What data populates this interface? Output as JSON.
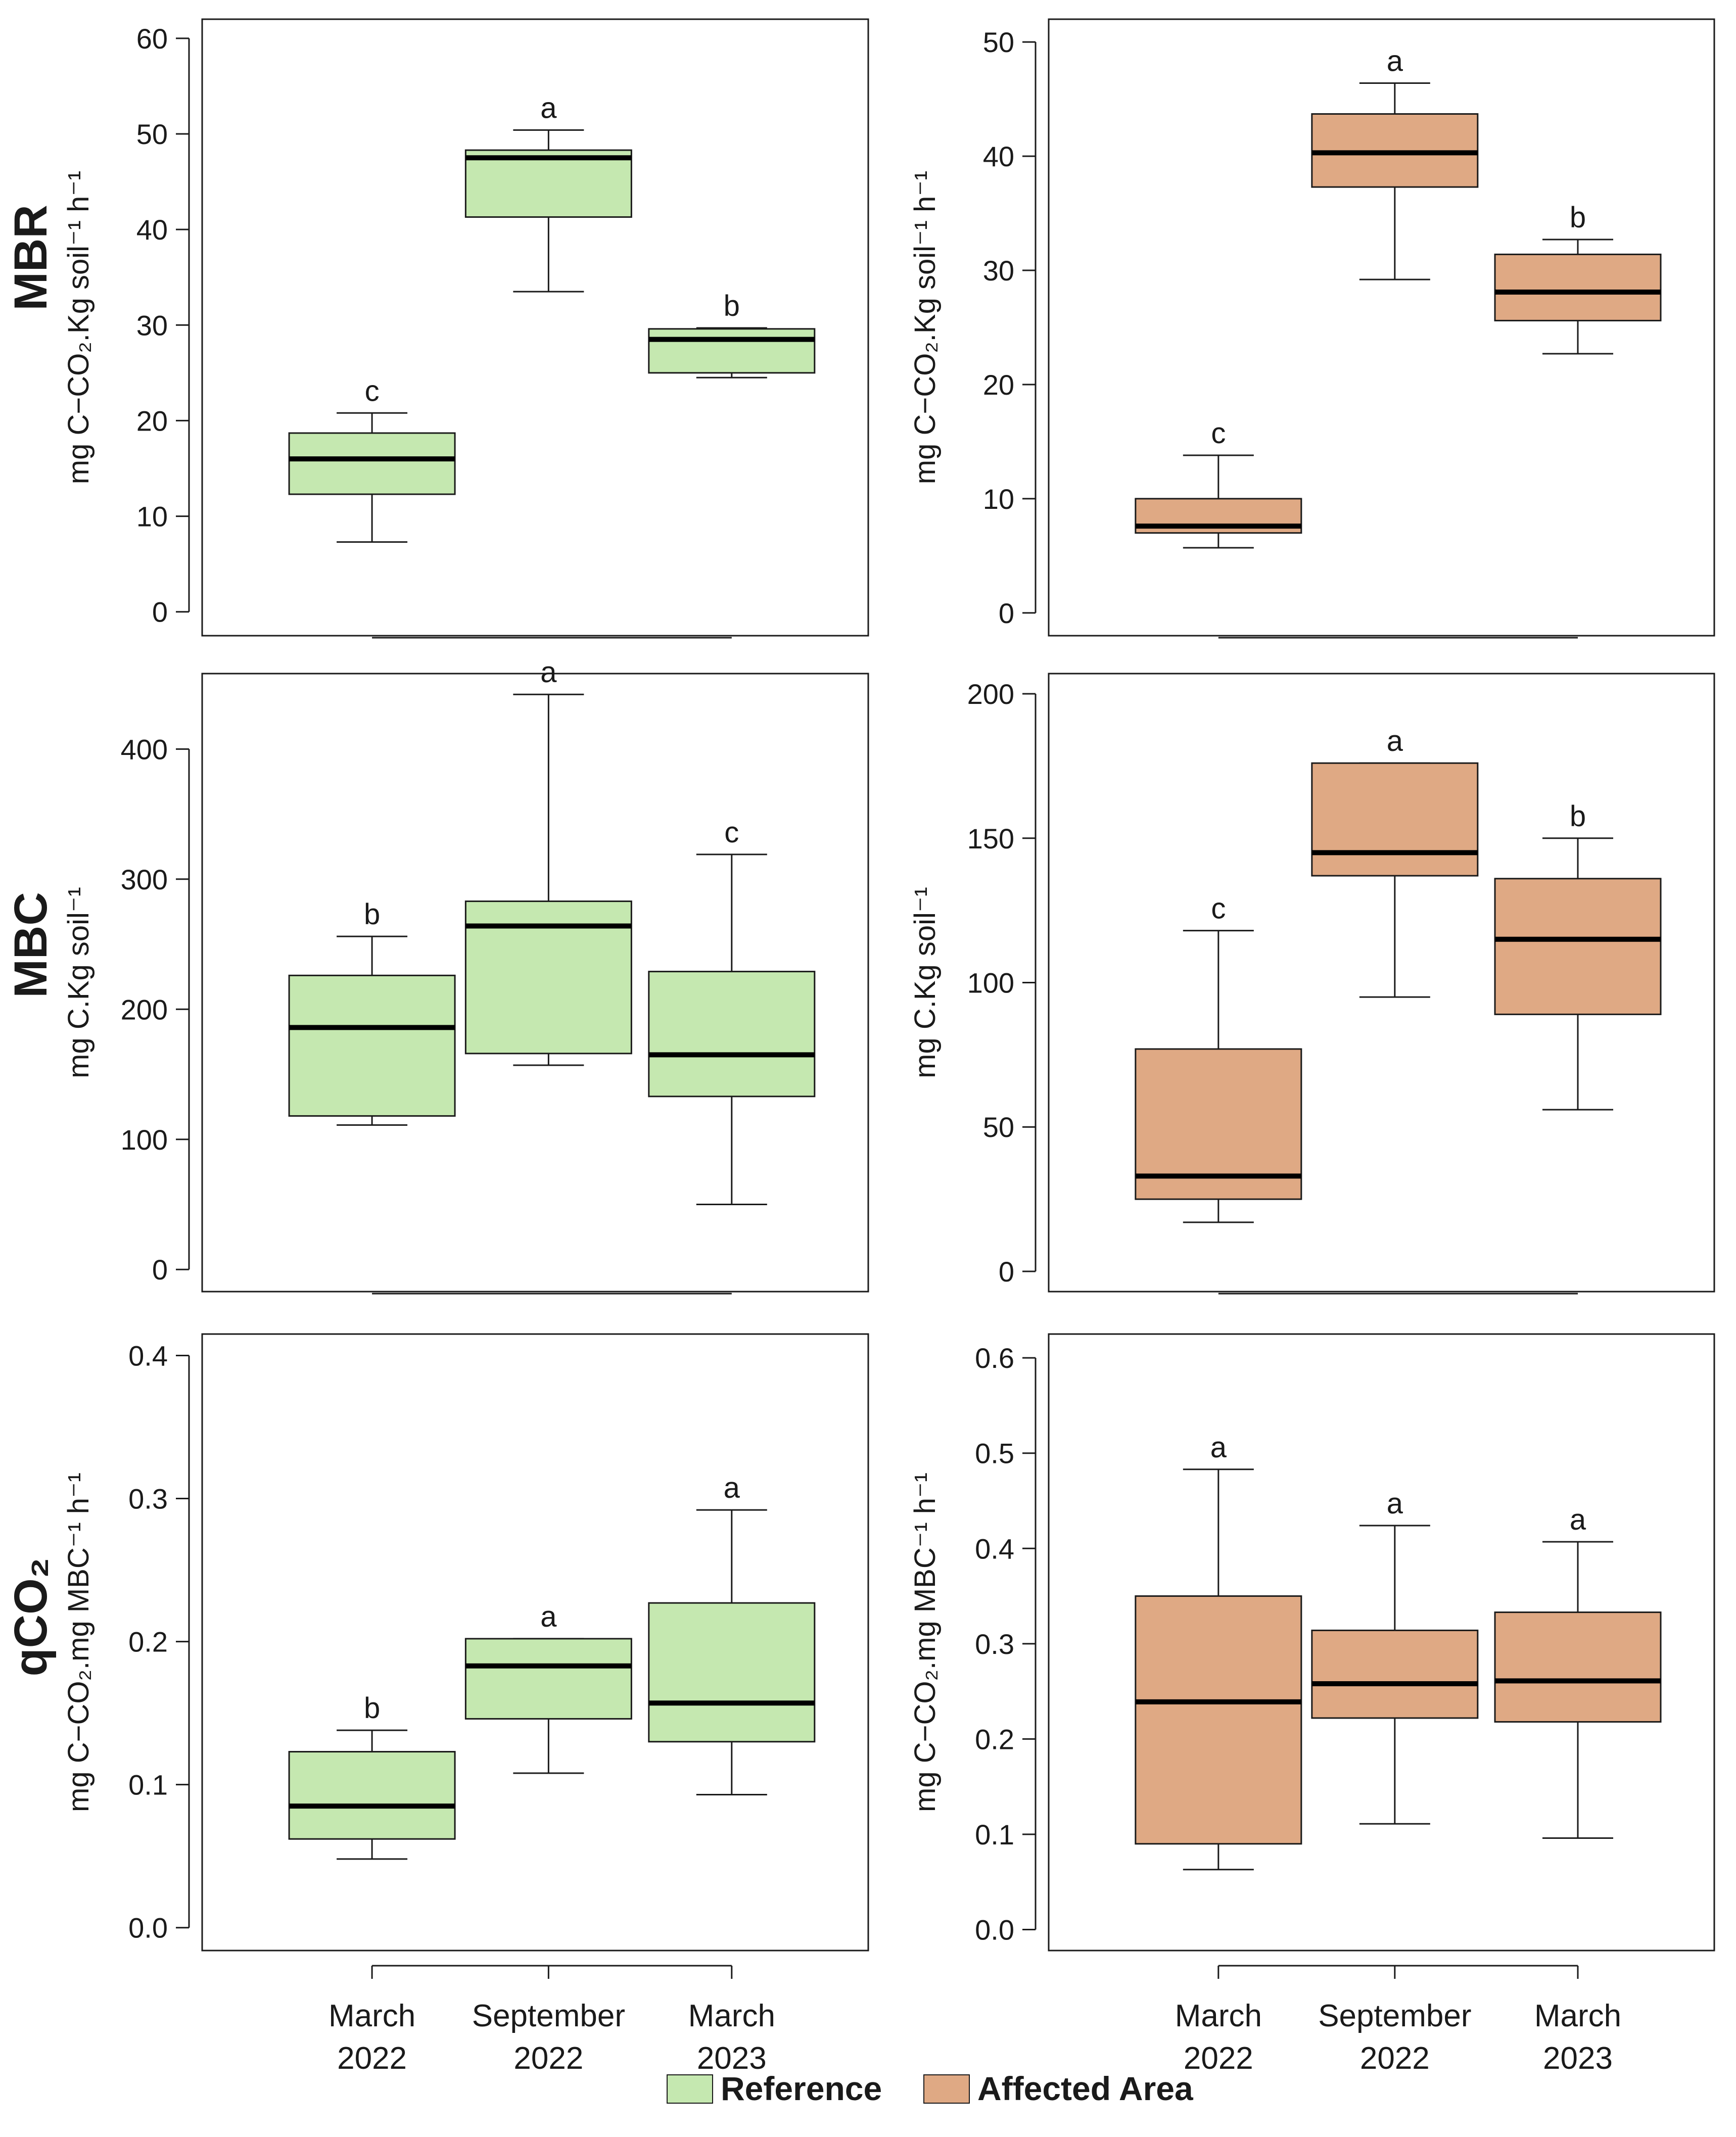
{
  "colors": {
    "reference_fill": "#c5e8b0",
    "affected_fill": "#dfa984",
    "stroke": "#1a1a1a",
    "median": "#000000"
  },
  "legend": [
    {
      "label": "Reference",
      "color": "#c5e8b0"
    },
    {
      "label": "Affected Area",
      "color": "#dfa984"
    }
  ],
  "rows": [
    {
      "title": "MBR"
    },
    {
      "title": "MBC"
    },
    {
      "title": "qCO₂"
    }
  ],
  "chart_data": [
    {
      "type": "box",
      "row": 0,
      "col": 0,
      "group": "Reference",
      "ylabel": "mg C−CO₂.Kg soil⁻¹ h⁻¹",
      "ylim": [
        -2.5,
        62
      ],
      "yticks": [
        0,
        10,
        20,
        30,
        40,
        50,
        60
      ],
      "tick_labels": [
        "0",
        "10",
        "20",
        "30",
        "40",
        "50",
        "60"
      ],
      "categories": [
        "March 2022",
        "September 2022",
        "March 2023"
      ],
      "boxes": [
        {
          "whisker_low": 7.3,
          "q1": 12.3,
          "median": 16.0,
          "q3": 18.7,
          "whisker_high": 20.8,
          "letter": "c"
        },
        {
          "whisker_low": 33.5,
          "q1": 41.3,
          "median": 47.5,
          "q3": 48.3,
          "whisker_high": 50.4,
          "letter": "a"
        },
        {
          "whisker_low": 24.5,
          "q1": 25.0,
          "median": 28.5,
          "q3": 29.6,
          "whisker_high": 29.7,
          "letter": "b"
        }
      ]
    },
    {
      "type": "box",
      "row": 0,
      "col": 1,
      "group": "Affected Area",
      "ylabel": "mg C−CO₂.Kg soil⁻¹ h⁻¹",
      "ylim": [
        -2.0,
        52
      ],
      "yticks": [
        0,
        10,
        20,
        30,
        40,
        50
      ],
      "tick_labels": [
        "0",
        "10",
        "20",
        "30",
        "40",
        "50"
      ],
      "categories": [
        "March 2022",
        "September 2022",
        "March 2023"
      ],
      "boxes": [
        {
          "whisker_low": 5.7,
          "q1": 7.0,
          "median": 7.6,
          "q3": 10.0,
          "whisker_high": 13.8,
          "letter": "c"
        },
        {
          "whisker_low": 29.2,
          "q1": 37.3,
          "median": 40.3,
          "q3": 43.7,
          "whisker_high": 46.4,
          "letter": "a"
        },
        {
          "whisker_low": 22.7,
          "q1": 25.6,
          "median": 28.1,
          "q3": 31.4,
          "whisker_high": 32.7,
          "letter": "b"
        }
      ]
    },
    {
      "type": "box",
      "row": 1,
      "col": 0,
      "group": "Reference",
      "ylabel": "mg C.Kg soil⁻¹",
      "ylim": [
        -17,
        458
      ],
      "yticks": [
        0,
        100,
        200,
        300,
        400
      ],
      "tick_labels": [
        "0",
        "100",
        "200",
        "300",
        "400"
      ],
      "categories": [
        "March 2022",
        "September 2022",
        "March 2023"
      ],
      "boxes": [
        {
          "whisker_low": 111,
          "q1": 118,
          "median": 186,
          "q3": 226,
          "whisker_high": 256,
          "letter": "b"
        },
        {
          "whisker_low": 157,
          "q1": 166,
          "median": 264,
          "q3": 283,
          "whisker_high": 442,
          "letter": "a"
        },
        {
          "whisker_low": 50,
          "q1": 133,
          "median": 165,
          "q3": 229,
          "whisker_high": 319,
          "letter": "c"
        }
      ]
    },
    {
      "type": "box",
      "row": 1,
      "col": 1,
      "group": "Affected Area",
      "ylabel": "mg C.Kg soil⁻¹",
      "ylim": [
        -7,
        207
      ],
      "yticks": [
        0,
        50,
        100,
        150,
        200
      ],
      "tick_labels": [
        "0",
        "50",
        "100",
        "150",
        "200"
      ],
      "categories": [
        "March 2022",
        "September 2022",
        "March 2023"
      ],
      "boxes": [
        {
          "whisker_low": 17,
          "q1": 25,
          "median": 33,
          "q3": 77,
          "whisker_high": 118,
          "letter": "c"
        },
        {
          "whisker_low": 95,
          "q1": 137,
          "median": 145,
          "q3": 176,
          "whisker_high": 176,
          "letter": "a"
        },
        {
          "whisker_low": 56,
          "q1": 89,
          "median": 115,
          "q3": 136,
          "whisker_high": 150,
          "letter": "b"
        }
      ]
    },
    {
      "type": "box",
      "row": 2,
      "col": 0,
      "group": "Reference",
      "ylabel": "mg C−CO₂.mg MBC⁻¹ h⁻¹",
      "ylim": [
        -0.016,
        0.415
      ],
      "yticks": [
        0.0,
        0.1,
        0.2,
        0.3,
        0.4
      ],
      "tick_labels": [
        "0.0",
        "0.1",
        "0.2",
        "0.3",
        "0.4"
      ],
      "categories": [
        "March 2022",
        "September 2022",
        "March 2023"
      ],
      "boxes": [
        {
          "whisker_low": 0.048,
          "q1": 0.062,
          "median": 0.085,
          "q3": 0.123,
          "whisker_high": 0.138,
          "letter": "b"
        },
        {
          "whisker_low": 0.108,
          "q1": 0.146,
          "median": 0.183,
          "q3": 0.202,
          "whisker_high": 0.202,
          "letter": "a"
        },
        {
          "whisker_low": 0.093,
          "q1": 0.13,
          "median": 0.157,
          "q3": 0.227,
          "whisker_high": 0.292,
          "letter": "a"
        }
      ]
    },
    {
      "type": "box",
      "row": 2,
      "col": 1,
      "group": "Affected Area",
      "ylabel": "mg C−CO₂.mg MBC⁻¹ h⁻¹",
      "ylim": [
        -0.022,
        0.625
      ],
      "yticks": [
        0.0,
        0.1,
        0.2,
        0.3,
        0.4,
        0.5,
        0.6
      ],
      "tick_labels": [
        "0.0",
        "0.1",
        "0.2",
        "0.3",
        "0.4",
        "0.5",
        "0.6"
      ],
      "categories": [
        "March 2022",
        "September 2022",
        "March 2023"
      ],
      "boxes": [
        {
          "whisker_low": 0.063,
          "q1": 0.09,
          "median": 0.239,
          "q3": 0.35,
          "whisker_high": 0.483,
          "letter": "a"
        },
        {
          "whisker_low": 0.111,
          "q1": 0.222,
          "median": 0.258,
          "q3": 0.314,
          "whisker_high": 0.424,
          "letter": "a"
        },
        {
          "whisker_low": 0.096,
          "q1": 0.218,
          "median": 0.261,
          "q3": 0.333,
          "whisker_high": 0.407,
          "letter": "a"
        }
      ]
    }
  ],
  "x_labels": [
    {
      "line1": "March",
      "line2": "2022"
    },
    {
      "line1": "September",
      "line2": "2022"
    },
    {
      "line1": "March",
      "line2": "2023"
    }
  ]
}
